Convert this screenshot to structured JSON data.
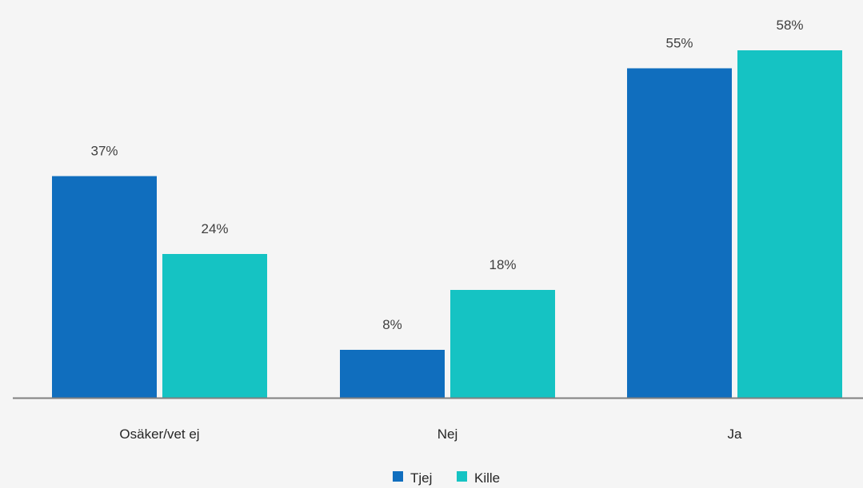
{
  "chart_data": {
    "type": "bar",
    "categories": [
      "Osäker/vet ej",
      "Nej",
      "Ja"
    ],
    "series": [
      {
        "name": "Tjej",
        "values": [
          37,
          8,
          55
        ],
        "labels": [
          "37%",
          "8%",
          "55%"
        ],
        "color": "#106ebe"
      },
      {
        "name": "Kille",
        "values": [
          24,
          18,
          58
        ],
        "labels": [
          "24%",
          "18%",
          "58%"
        ],
        "color": "#15c3c3"
      }
    ],
    "value_suffix": "%",
    "ylim": [
      0,
      62
    ],
    "grid": false,
    "legend": "bottom-center",
    "axis_color": "#808080"
  }
}
